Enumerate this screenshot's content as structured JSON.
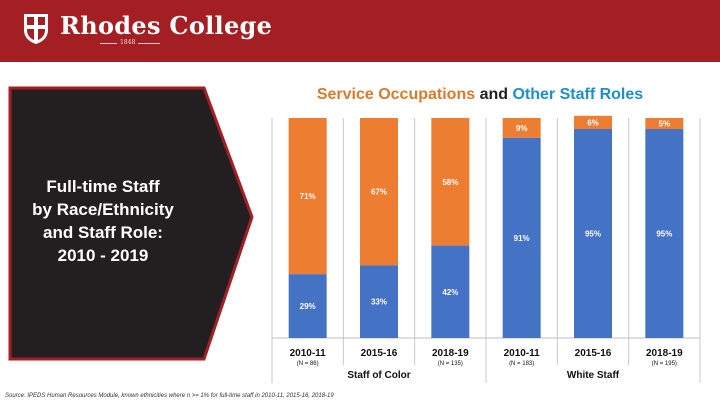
{
  "header": {
    "college_name": "Rhodes College",
    "est_year": "1848"
  },
  "panel": {
    "title_lines": [
      "Full-time Staff",
      "by Race/Ethnicity",
      "and Staff Role:",
      "2010 - 2019"
    ]
  },
  "colors": {
    "header_bg": "#a31f24",
    "panel_bg": "#231f20",
    "service": "#ed7d31",
    "other": "#4472c4"
  },
  "chart_data": {
    "type": "bar",
    "stacked": true,
    "normalized": true,
    "title_parts": [
      "Service Occupations",
      " and ",
      "Other Staff Roles"
    ],
    "categories": [
      "2010-11",
      "2015-16",
      "2018-19",
      "2010-11",
      "2015-16",
      "2018-19"
    ],
    "n_labels": [
      "(N = 86)",
      "",
      "(N = 135)",
      "(N = 183)",
      "",
      "(N = 195)"
    ],
    "groups": [
      {
        "label": "Staff of Color",
        "indices": [
          0,
          1,
          2
        ]
      },
      {
        "label": "White Staff",
        "indices": [
          3,
          4,
          5
        ]
      }
    ],
    "series": [
      {
        "name": "Other Staff Roles",
        "values": [
          29,
          33,
          42,
          91,
          95,
          95
        ],
        "labels": [
          "29%",
          "33%",
          "42%",
          "91%",
          "95%",
          "95%"
        ]
      },
      {
        "name": "Service Occupations",
        "values": [
          71,
          67,
          58,
          9,
          6,
          5
        ],
        "labels": [
          "71%",
          "67%",
          "58%",
          "9%",
          "6%",
          "5%"
        ]
      }
    ],
    "ylim": [
      0,
      100
    ]
  },
  "source": "Source: IPEDS Human Resources Module, known ethnicities where n >= 1% for full-time staff in 2010-11, 2015-16, 2018-19"
}
